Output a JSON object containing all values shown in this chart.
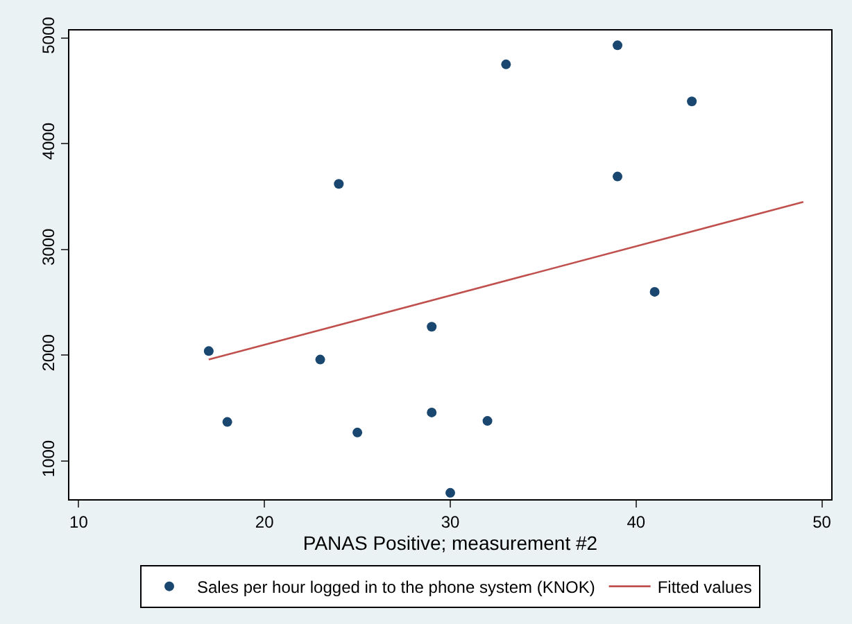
{
  "chart_data": {
    "type": "scatter",
    "xlabel": "PANAS Positive; measurement #2",
    "xlim": [
      9.5,
      50.5
    ],
    "xticks": [
      10,
      20,
      30,
      40,
      50
    ],
    "ylim": [
      640,
      5070
    ],
    "yticks": [
      1000,
      2000,
      3000,
      4000,
      5000
    ],
    "legend": "bottom",
    "series": [
      {
        "name": "Sales per hour logged in to the phone system (KNOK)",
        "color": "#1a476f",
        "marker": "circle",
        "x": [
          17,
          18,
          23,
          24,
          25,
          29,
          29,
          30,
          32,
          33,
          39,
          39,
          41,
          43
        ],
        "values": [
          2040,
          1370,
          1960,
          3620,
          1270,
          2270,
          1460,
          700,
          1380,
          4750,
          4930,
          3690,
          2600,
          4400
        ]
      },
      {
        "name": "Fitted values",
        "type": "line",
        "color": "#c0504d",
        "x": [
          17,
          49
        ],
        "values": [
          1960,
          3450
        ]
      }
    ]
  }
}
